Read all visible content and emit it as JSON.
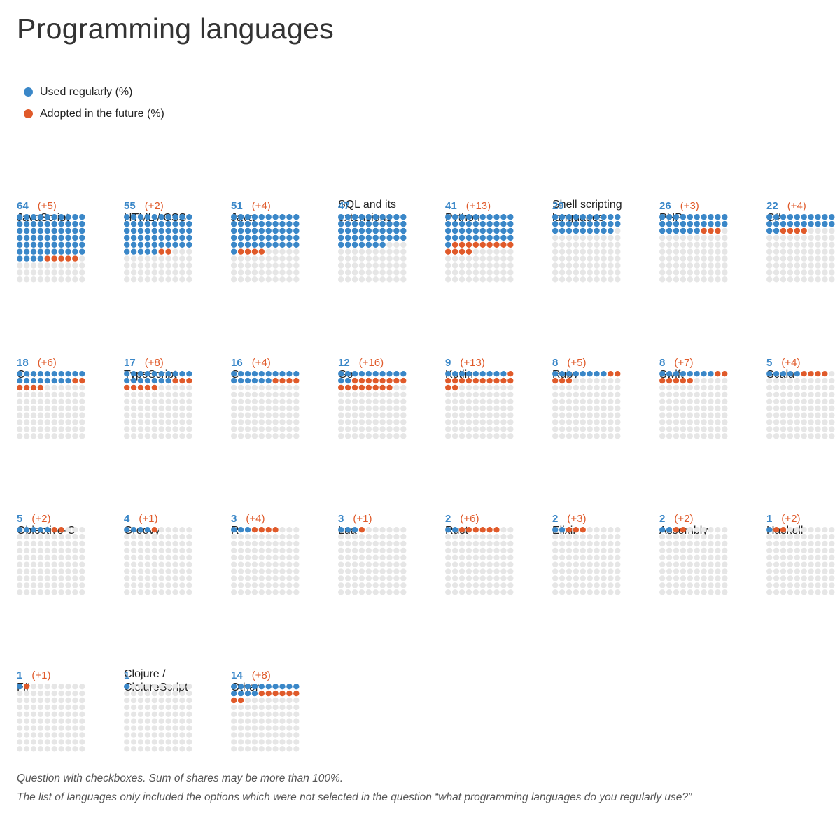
{
  "title": "Programming languages",
  "colors": {
    "used": "#3a87c8",
    "adopted": "#e05a2a",
    "empty": "#e6e6e6"
  },
  "legend": [
    {
      "label": "Used regularly (%)",
      "color": "#3a87c8"
    },
    {
      "label": "Adopted in the future (%)",
      "color": "#e05a2a"
    }
  ],
  "chart_data": {
    "type": "waffle",
    "title": "Programming languages",
    "unit": "%",
    "grid": "10x10 per language",
    "series": [
      {
        "name": "Used regularly (%)"
      },
      {
        "name": "Adopted in the future (%)"
      }
    ],
    "languages": [
      {
        "name": "JavaScript",
        "used": 64,
        "adopted": 5,
        "adopted_label": "(+5)"
      },
      {
        "name": "HTML / CSS",
        "used": 55,
        "adopted": 2,
        "adopted_label": "(+2)"
      },
      {
        "name": "Java",
        "used": 51,
        "adopted": 4,
        "adopted_label": "(+4)"
      },
      {
        "name": "SQL and its extensions",
        "used": 47,
        "adopted": null,
        "adopted_label": ""
      },
      {
        "name": "Python",
        "used": 41,
        "adopted": 13,
        "adopted_label": "(+13)"
      },
      {
        "name": "Shell scripting languages",
        "used": 29,
        "adopted": null,
        "adopted_label": ""
      },
      {
        "name": "PHP",
        "used": 26,
        "adopted": 3,
        "adopted_label": "(+3)"
      },
      {
        "name": "C#",
        "used": 22,
        "adopted": 4,
        "adopted_label": "(+4)"
      },
      {
        "name": "C++",
        "used": 18,
        "adopted": 6,
        "adopted_label": "(+6)"
      },
      {
        "name": "TypeScript",
        "used": 17,
        "adopted": 8,
        "adopted_label": "(+8)"
      },
      {
        "name": "C",
        "used": 16,
        "adopted": 4,
        "adopted_label": "(+4)"
      },
      {
        "name": "Go",
        "used": 12,
        "adopted": 16,
        "adopted_label": "(+16)"
      },
      {
        "name": "Kotlin",
        "used": 9,
        "adopted": 13,
        "adopted_label": "(+13)"
      },
      {
        "name": "Ruby",
        "used": 8,
        "adopted": 5,
        "adopted_label": "(+5)"
      },
      {
        "name": "Swift",
        "used": 8,
        "adopted": 7,
        "adopted_label": "(+7)"
      },
      {
        "name": "Scala",
        "used": 5,
        "adopted": 4,
        "adopted_label": "(+4)"
      },
      {
        "name": "Objective-C",
        "used": 5,
        "adopted": 2,
        "adopted_label": "(+2)"
      },
      {
        "name": "Groovy",
        "used": 4,
        "adopted": 1,
        "adopted_label": "(+1)"
      },
      {
        "name": "R",
        "used": 3,
        "adopted": 4,
        "adopted_label": "(+4)"
      },
      {
        "name": "Lua",
        "used": 3,
        "adopted": 1,
        "adopted_label": "(+1)"
      },
      {
        "name": "Rust",
        "used": 2,
        "adopted": 6,
        "adopted_label": "(+6)"
      },
      {
        "name": "Elixir",
        "used": 2,
        "adopted": 3,
        "adopted_label": "(+3)"
      },
      {
        "name": "Assembly",
        "used": 2,
        "adopted": 2,
        "adopted_label": "(+2)"
      },
      {
        "name": "Haskell",
        "used": 1,
        "adopted": 2,
        "adopted_label": "(+2)"
      },
      {
        "name": "F#",
        "used": 1,
        "adopted": 1,
        "adopted_label": "(+1)"
      },
      {
        "name": "Clojure / ClojureScript",
        "used": 1,
        "adopted": null,
        "adopted_label": ""
      },
      {
        "name": "Other",
        "used": 14,
        "adopted": 8,
        "adopted_label": "(+8)"
      }
    ]
  },
  "footnotes": [
    "Question with checkboxes. Sum of shares may be more than 100%.",
    "The list of languages only included the options which were not selected in the question “what programming languages do you regularly use?”"
  ]
}
